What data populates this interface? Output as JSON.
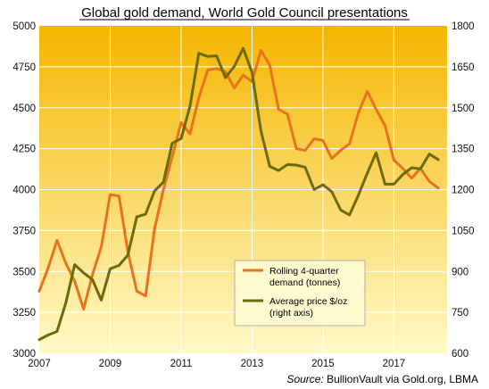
{
  "title": "Global gold demand, World Gold Council presentations",
  "source_prefix": "Source:",
  "source_rest": " BullionVault via Gold.org, LBMA",
  "colors": {
    "demand": "#e8731e",
    "price": "#6b6b0c",
    "bg_top": "#f5b600",
    "bg_bottom": "#fff9c7",
    "grid": "#ffffff"
  },
  "chart_data": {
    "type": "line",
    "grid": true,
    "legend_placement": "center-right",
    "x_ticks": [
      "2007",
      "2009",
      "2011",
      "2013",
      "2015",
      "2017"
    ],
    "x_range": [
      2007,
      2018.5
    ],
    "y_left": {
      "min": 3000,
      "max": 5000,
      "ticks": [
        "3000",
        "3250",
        "3500",
        "3750",
        "4000",
        "4250",
        "4500",
        "4750",
        "5000"
      ]
    },
    "y_right": {
      "min": 600,
      "max": 1800,
      "ticks": [
        "600",
        "750",
        "900",
        "1050",
        "1200",
        "1350",
        "1500",
        "1650",
        "1800"
      ]
    },
    "series": [
      {
        "key": "demand",
        "axis": "left",
        "name": "Rolling 4-quarter demand (tonnes)",
        "legend_lines": [
          "Rolling 4-quarter",
          "demand (tonnes)"
        ],
        "points": [
          [
            2007.0,
            3380
          ],
          [
            2007.25,
            3520
          ],
          [
            2007.5,
            3690
          ],
          [
            2007.75,
            3550
          ],
          [
            2008.0,
            3440
          ],
          [
            2008.25,
            3270
          ],
          [
            2008.5,
            3480
          ],
          [
            2008.75,
            3650
          ],
          [
            2009.0,
            3970
          ],
          [
            2009.25,
            3960
          ],
          [
            2009.5,
            3620
          ],
          [
            2009.75,
            3380
          ],
          [
            2010.0,
            3350
          ],
          [
            2010.25,
            3760
          ],
          [
            2010.5,
            4000
          ],
          [
            2010.75,
            4200
          ],
          [
            2011.0,
            4410
          ],
          [
            2011.25,
            4340
          ],
          [
            2011.5,
            4560
          ],
          [
            2011.75,
            4730
          ],
          [
            2012.0,
            4740
          ],
          [
            2012.25,
            4720
          ],
          [
            2012.5,
            4620
          ],
          [
            2012.75,
            4700
          ],
          [
            2013.0,
            4660
          ],
          [
            2013.25,
            4850
          ],
          [
            2013.5,
            4760
          ],
          [
            2013.75,
            4490
          ],
          [
            2014.0,
            4460
          ],
          [
            2014.25,
            4250
          ],
          [
            2014.5,
            4240
          ],
          [
            2014.75,
            4310
          ],
          [
            2015.0,
            4300
          ],
          [
            2015.25,
            4190
          ],
          [
            2015.5,
            4240
          ],
          [
            2015.75,
            4280
          ],
          [
            2016.0,
            4470
          ],
          [
            2016.25,
            4600
          ],
          [
            2016.5,
            4490
          ],
          [
            2016.75,
            4390
          ],
          [
            2017.0,
            4180
          ],
          [
            2017.25,
            4130
          ],
          [
            2017.5,
            4070
          ],
          [
            2017.75,
            4130
          ],
          [
            2018.0,
            4050
          ],
          [
            2018.25,
            4010
          ]
        ]
      },
      {
        "key": "price",
        "axis": "right",
        "name": "Average price $/oz (right axis)",
        "legend_lines": [
          "Average price $/oz",
          "(right axis)"
        ],
        "points": [
          [
            2007.0,
            650
          ],
          [
            2007.25,
            667
          ],
          [
            2007.5,
            680
          ],
          [
            2007.75,
            785
          ],
          [
            2008.0,
            925
          ],
          [
            2008.25,
            895
          ],
          [
            2008.5,
            870
          ],
          [
            2008.75,
            795
          ],
          [
            2009.0,
            910
          ],
          [
            2009.25,
            922
          ],
          [
            2009.5,
            960
          ],
          [
            2009.75,
            1100
          ],
          [
            2010.0,
            1110
          ],
          [
            2010.25,
            1195
          ],
          [
            2010.5,
            1227
          ],
          [
            2010.75,
            1370
          ],
          [
            2011.0,
            1387
          ],
          [
            2011.25,
            1505
          ],
          [
            2011.5,
            1700
          ],
          [
            2011.75,
            1688
          ],
          [
            2012.0,
            1690
          ],
          [
            2012.25,
            1610
          ],
          [
            2012.5,
            1652
          ],
          [
            2012.75,
            1718
          ],
          [
            2013.0,
            1630
          ],
          [
            2013.25,
            1415
          ],
          [
            2013.5,
            1285
          ],
          [
            2013.75,
            1270
          ],
          [
            2014.0,
            1292
          ],
          [
            2014.25,
            1290
          ],
          [
            2014.5,
            1282
          ],
          [
            2014.75,
            1200
          ],
          [
            2015.0,
            1218
          ],
          [
            2015.25,
            1192
          ],
          [
            2015.5,
            1125
          ],
          [
            2015.75,
            1107
          ],
          [
            2016.0,
            1180
          ],
          [
            2016.25,
            1260
          ],
          [
            2016.5,
            1335
          ],
          [
            2016.75,
            1220
          ],
          [
            2017.0,
            1220
          ],
          [
            2017.25,
            1255
          ],
          [
            2017.5,
            1280
          ],
          [
            2017.75,
            1276
          ],
          [
            2018.0,
            1330
          ],
          [
            2018.25,
            1310
          ]
        ]
      }
    ]
  }
}
